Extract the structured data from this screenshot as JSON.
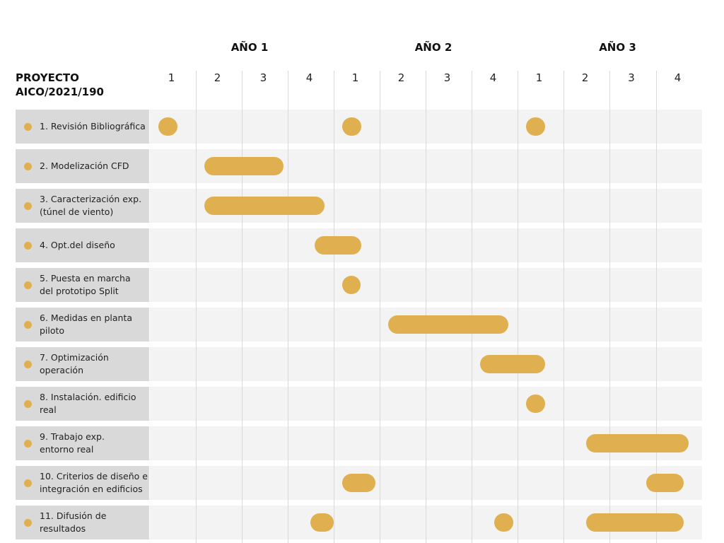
{
  "project": {
    "title": "PROYECTO\nAICO/2021/190"
  },
  "years": [
    "AÑO 1",
    "AÑO 2",
    "AÑO 3"
  ],
  "quarters": [
    "1",
    "2",
    "3",
    "4",
    "1",
    "2",
    "3",
    "4",
    "1",
    "2",
    "3",
    "4"
  ],
  "colors": {
    "bar": "#e0b050",
    "label_background": "#d9d9d9",
    "row_background": "#f3f3f3",
    "grid_line": "#d9d9d9"
  },
  "chart_data": {
    "type": "gantt",
    "time_unit": "quarter",
    "periods": 12,
    "tasks": [
      {
        "label": "1. Revisión Bibliográfica",
        "bars": [
          {
            "start": 1,
            "end": 1.6
          },
          {
            "start": 5,
            "end": 5.6
          },
          {
            "start": 9,
            "end": 9.6
          }
        ]
      },
      {
        "label": "2. Modelización CFD",
        "bars": [
          {
            "start": 2,
            "end": 3.9
          }
        ]
      },
      {
        "label": "3. Caracterización exp.\n(túnel de viento)",
        "bars": [
          {
            "start": 2,
            "end": 4.8
          }
        ]
      },
      {
        "label": "4. Opt.del diseño",
        "bars": [
          {
            "start": 4.4,
            "end": 5.6
          }
        ]
      },
      {
        "label": "5. Puesta en marcha\ndel prototipo Split",
        "bars": [
          {
            "start": 5,
            "end": 5.5
          }
        ]
      },
      {
        "label": "6. Medidas en planta\npiloto",
        "bars": [
          {
            "start": 6,
            "end": 8.8
          }
        ]
      },
      {
        "label": "7. Optimización\noperación",
        "bars": [
          {
            "start": 8,
            "end": 9.6
          }
        ]
      },
      {
        "label": "8. Instalación. edificio\nreal",
        "bars": [
          {
            "start": 9,
            "end": 9.6
          }
        ]
      },
      {
        "label": "9. Trabajo exp.\nentorno real",
        "bars": [
          {
            "start": 10.3,
            "end": 12.7
          }
        ]
      },
      {
        "label": "10. Criterios de diseño e\nintegración en edificios",
        "bars": [
          {
            "start": 5,
            "end": 5.9
          },
          {
            "start": 11.6,
            "end": 12.6
          }
        ]
      },
      {
        "label": "11. Difusión de\nresultados",
        "bars": [
          {
            "start": 4.3,
            "end": 5
          },
          {
            "start": 8.3,
            "end": 8.9
          },
          {
            "start": 10.3,
            "end": 12.6
          }
        ]
      }
    ]
  }
}
